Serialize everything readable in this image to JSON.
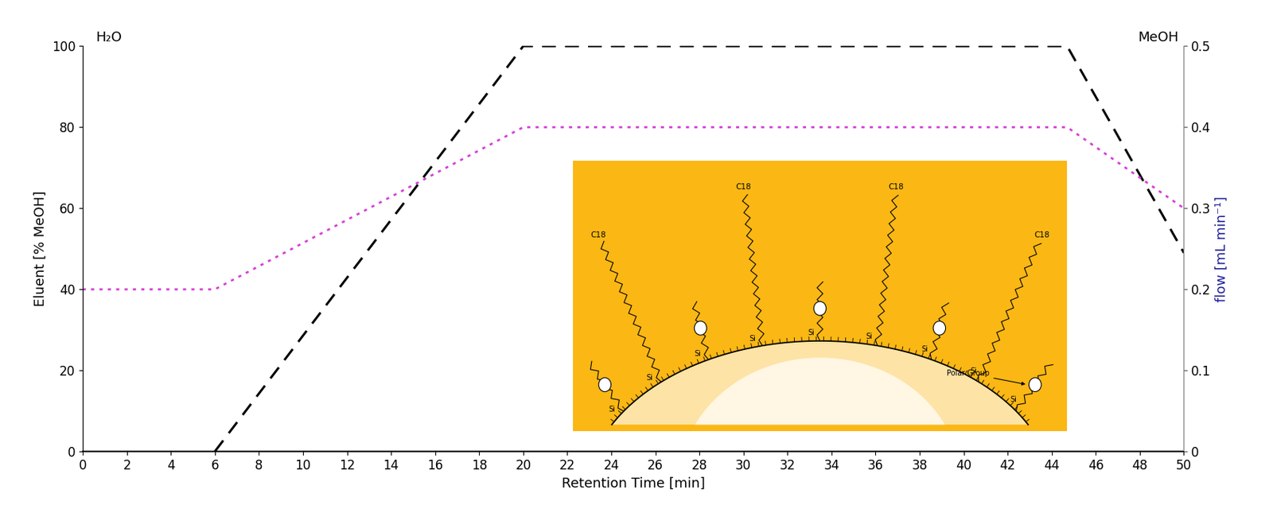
{
  "chart_data": {
    "type": "line",
    "xlabel": "Retention Time [min]",
    "ylabel": "Eluent [% MeOH]",
    "y2label": "flow [mL min⁻¹]",
    "annotations": [
      "H₂O",
      "MeOH"
    ],
    "xlim": [
      0,
      50
    ],
    "xticks": [
      0,
      2,
      4,
      6,
      8,
      10,
      12,
      14,
      16,
      18,
      20,
      22,
      24,
      26,
      28,
      30,
      32,
      34,
      36,
      38,
      40,
      42,
      44,
      46,
      48,
      50
    ],
    "ylim": [
      0,
      100
    ],
    "yticks": [
      0,
      20,
      40,
      60,
      80,
      100
    ],
    "y2lim": [
      0,
      0.5
    ],
    "y2ticks": [
      0,
      0.1,
      0.2,
      0.3,
      0.4,
      0.5
    ],
    "grid": false,
    "series": [
      {
        "x": [
          6,
          20,
          44.7,
          50
        ],
        "values": [
          0,
          100,
          100,
          49
        ],
        "color": "#000000",
        "line_style": "dashed"
      },
      {
        "x": [
          0,
          6,
          20,
          44.7,
          50
        ],
        "values": [
          0.2,
          0.2,
          0.4,
          0.4,
          0.3
        ],
        "color": "#d63fd6",
        "line_style": "dotted",
        "axis": "y2"
      }
    ],
    "inset": {
      "chain_labels": [
        "C18",
        "C18",
        "C18",
        "C18"
      ],
      "surface_labels": [
        "Si",
        "Si",
        "Si",
        "Si",
        "Si",
        "Si",
        "Si",
        "Si",
        "Si"
      ],
      "polar_group_label": "Polar Group"
    }
  }
}
